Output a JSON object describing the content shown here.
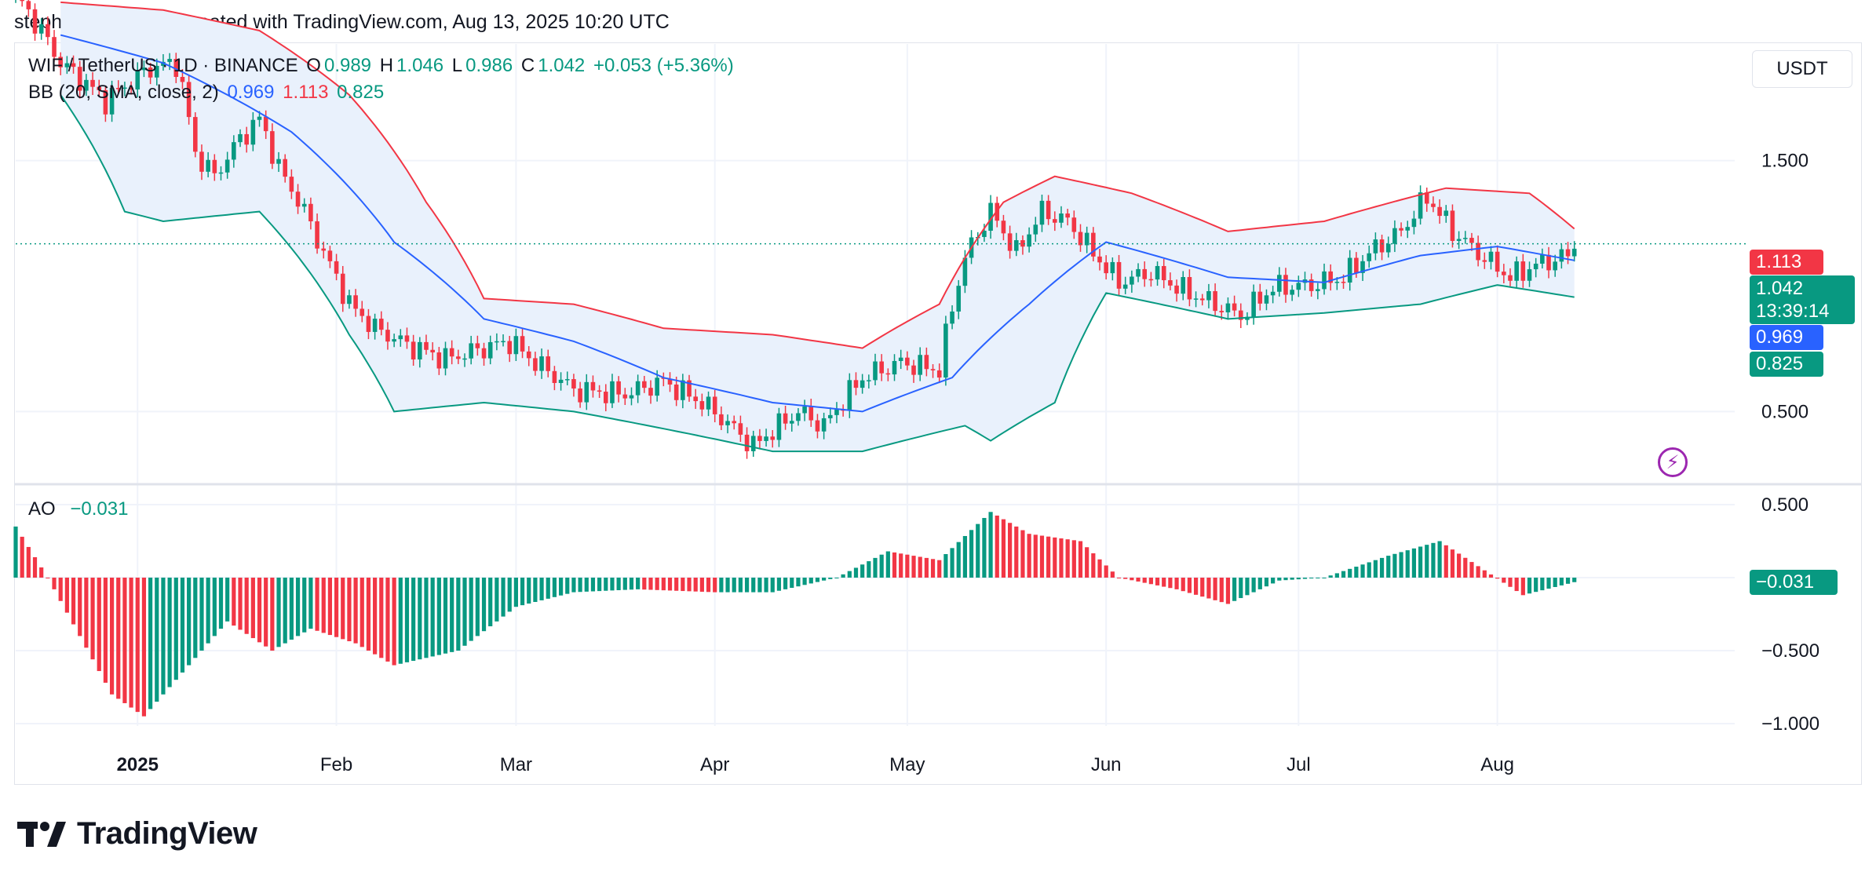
{
  "header": {
    "attribution": "stephanieolivia346 created with TradingView.com, Aug 13, 2025 10:20 UTC"
  },
  "legend": {
    "symbol": "WIF / TetherUS · 1D · BINANCE",
    "o_label": "O",
    "o_value": "0.989",
    "h_label": "H",
    "h_value": "1.046",
    "l_label": "L",
    "l_value": "0.986",
    "c_label": "C",
    "c_value": "1.042",
    "change": "+0.053 (+5.36%)",
    "bb_label": "BB (20, SMA, close, 2)",
    "bb_basis": "0.969",
    "bb_upper": "1.113",
    "bb_lower": "0.825",
    "ao_label": "AO",
    "ao_value": "−0.031"
  },
  "currency": "USDT",
  "price_tags": {
    "upper": "1.113",
    "last": "1.042",
    "countdown": "13:39:14",
    "basis": "0.969",
    "lower": "0.825",
    "ao": "−0.031"
  },
  "logo_text": "TradingView",
  "colors": {
    "up": "#089981",
    "down": "#f23645",
    "basis": "#2962ff",
    "upper": "#f23645",
    "lower": "#089981",
    "band_fill": "#e9f1fc",
    "grid": "#f0f3fa",
    "text": "#131722"
  },
  "chart_data": {
    "type": "candlestick",
    "symbol": "WIF / TetherUS",
    "interval": "1D",
    "exchange": "BINANCE",
    "last": {
      "open": 0.989,
      "high": 1.046,
      "low": 0.986,
      "close": 1.042,
      "change": 0.053,
      "change_pct": 5.36
    },
    "price_axis": {
      "scale": "log",
      "ticks": [
        "1.500",
        "0.500"
      ],
      "range": [
        0.37,
        2.5
      ]
    },
    "ao_axis": {
      "ticks": [
        "0.500",
        "−0.500",
        "−1.000"
      ],
      "range": [
        -1.0,
        0.5
      ]
    },
    "x_axis": {
      "labels": [
        "2025",
        "Feb",
        "Mar",
        "Apr",
        "May",
        "Jun",
        "Jul",
        "Aug"
      ],
      "dates": [
        "2025-01-01",
        "2025-02-01",
        "2025-03-01",
        "2025-04-01",
        "2025-05-01",
        "2025-06-01",
        "2025-07-01",
        "2025-08-01"
      ],
      "range": [
        "2024-12-13",
        "2025-09-07"
      ]
    },
    "grid": true,
    "close_series": [
      [
        "2024-12-13",
        3.1
      ],
      [
        "2024-12-20",
        2.3
      ],
      [
        "2024-12-27",
        1.95
      ],
      [
        "2025-01-03",
        2.25
      ],
      [
        "2025-01-07",
        2.3
      ],
      [
        "2025-01-10",
        1.55
      ],
      [
        "2025-01-13",
        1.4
      ],
      [
        "2025-01-17",
        1.65
      ],
      [
        "2025-01-20",
        1.8
      ],
      [
        "2025-01-23",
        1.45
      ],
      [
        "2025-01-27",
        1.2
      ],
      [
        "2025-01-30",
        1.0
      ],
      [
        "2025-02-03",
        0.8
      ],
      [
        "2025-02-07",
        0.72
      ],
      [
        "2025-02-12",
        0.67
      ],
      [
        "2025-02-18",
        0.63
      ],
      [
        "2025-02-24",
        0.66
      ],
      [
        "2025-02-28",
        0.68
      ],
      [
        "2025-03-04",
        0.62
      ],
      [
        "2025-03-10",
        0.55
      ],
      [
        "2025-03-18",
        0.54
      ],
      [
        "2025-03-24",
        0.57
      ],
      [
        "2025-03-30",
        0.52
      ],
      [
        "2025-04-07",
        0.43
      ],
      [
        "2025-04-14",
        0.5
      ],
      [
        "2025-04-18",
        0.47
      ],
      [
        "2025-04-24",
        0.58
      ],
      [
        "2025-04-30",
        0.62
      ],
      [
        "2025-05-06",
        0.6
      ],
      [
        "2025-05-10",
        0.98
      ],
      [
        "2025-05-14",
        1.2
      ],
      [
        "2025-05-18",
        1.0
      ],
      [
        "2025-05-22",
        1.2
      ],
      [
        "2025-05-26",
        1.15
      ],
      [
        "2025-05-30",
        1.0
      ],
      [
        "2025-06-03",
        0.88
      ],
      [
        "2025-06-08",
        0.92
      ],
      [
        "2025-06-13",
        0.85
      ],
      [
        "2025-06-18",
        0.8
      ],
      [
        "2025-06-22",
        0.76
      ],
      [
        "2025-06-27",
        0.86
      ],
      [
        "2025-07-03",
        0.87
      ],
      [
        "2025-07-08",
        0.9
      ],
      [
        "2025-07-12",
        1.0
      ],
      [
        "2025-07-17",
        1.1
      ],
      [
        "2025-07-21",
        1.28
      ],
      [
        "2025-07-25",
        1.1
      ],
      [
        "2025-07-29",
        1.0
      ],
      [
        "2025-08-03",
        0.9
      ],
      [
        "2025-08-07",
        0.95
      ],
      [
        "2025-08-12",
        0.99
      ],
      [
        "2025-08-13",
        1.042
      ]
    ],
    "bb_upper_series": [
      [
        "2024-12-20",
        3.0
      ],
      [
        "2025-01-05",
        2.9
      ],
      [
        "2025-01-20",
        2.65
      ],
      [
        "2025-02-03",
        2.0
      ],
      [
        "2025-02-15",
        1.25
      ],
      [
        "2025-02-24",
        0.82
      ],
      [
        "2025-03-10",
        0.8
      ],
      [
        "2025-03-24",
        0.72
      ],
      [
        "2025-04-10",
        0.7
      ],
      [
        "2025-04-24",
        0.66
      ],
      [
        "2025-05-06",
        0.8
      ],
      [
        "2025-05-16",
        1.25
      ],
      [
        "2025-05-24",
        1.4
      ],
      [
        "2025-06-05",
        1.3
      ],
      [
        "2025-06-20",
        1.1
      ],
      [
        "2025-07-05",
        1.15
      ],
      [
        "2025-07-24",
        1.33
      ],
      [
        "2025-08-06",
        1.3
      ],
      [
        "2025-08-13",
        1.113
      ]
    ],
    "bb_basis_series": [
      [
        "2024-12-20",
        2.6
      ],
      [
        "2025-01-05",
        2.3
      ],
      [
        "2025-01-25",
        1.7
      ],
      [
        "2025-02-10",
        1.05
      ],
      [
        "2025-02-24",
        0.75
      ],
      [
        "2025-03-10",
        0.68
      ],
      [
        "2025-03-24",
        0.58
      ],
      [
        "2025-04-10",
        0.52
      ],
      [
        "2025-04-24",
        0.5
      ],
      [
        "2025-05-08",
        0.58
      ],
      [
        "2025-05-20",
        0.8
      ],
      [
        "2025-06-01",
        1.05
      ],
      [
        "2025-06-20",
        0.9
      ],
      [
        "2025-07-05",
        0.88
      ],
      [
        "2025-07-20",
        0.99
      ],
      [
        "2025-08-01",
        1.03
      ],
      [
        "2025-08-13",
        0.969
      ]
    ],
    "bb_lower_series": [
      [
        "2024-12-20",
        2.0
      ],
      [
        "2024-12-30",
        1.2
      ],
      [
        "2025-01-05",
        1.15
      ],
      [
        "2025-01-20",
        1.2
      ],
      [
        "2025-02-03",
        0.7
      ],
      [
        "2025-02-10",
        0.5
      ],
      [
        "2025-02-24",
        0.52
      ],
      [
        "2025-03-10",
        0.5
      ],
      [
        "2025-04-10",
        0.42
      ],
      [
        "2025-04-24",
        0.42
      ],
      [
        "2025-05-10",
        0.47
      ],
      [
        "2025-05-14",
        0.44
      ],
      [
        "2025-05-24",
        0.52
      ],
      [
        "2025-06-01",
        0.84
      ],
      [
        "2025-06-20",
        0.75
      ],
      [
        "2025-07-05",
        0.77
      ],
      [
        "2025-07-20",
        0.8
      ],
      [
        "2025-08-01",
        0.87
      ],
      [
        "2025-08-13",
        0.825
      ]
    ],
    "ao_series": [
      [
        "2024-12-13",
        0.35
      ],
      [
        "2024-12-18",
        0.0
      ],
      [
        "2024-12-28",
        -0.8
      ],
      [
        "2025-01-02",
        -0.95
      ],
      [
        "2025-01-08",
        -0.65
      ],
      [
        "2025-01-15",
        -0.3
      ],
      [
        "2025-01-22",
        -0.5
      ],
      [
        "2025-01-28",
        -0.35
      ],
      [
        "2025-02-04",
        -0.45
      ],
      [
        "2025-02-10",
        -0.6
      ],
      [
        "2025-02-20",
        -0.5
      ],
      [
        "2025-03-01",
        -0.2
      ],
      [
        "2025-03-10",
        -0.1
      ],
      [
        "2025-03-20",
        -0.08
      ],
      [
        "2025-04-01",
        -0.1
      ],
      [
        "2025-04-10",
        -0.1
      ],
      [
        "2025-04-20",
        0.0
      ],
      [
        "2025-04-28",
        0.18
      ],
      [
        "2025-05-06",
        0.12
      ],
      [
        "2025-05-14",
        0.45
      ],
      [
        "2025-05-20",
        0.3
      ],
      [
        "2025-05-28",
        0.25
      ],
      [
        "2025-06-03",
        0.0
      ],
      [
        "2025-06-12",
        -0.08
      ],
      [
        "2025-06-20",
        -0.18
      ],
      [
        "2025-06-28",
        -0.02
      ],
      [
        "2025-07-05",
        0.0
      ],
      [
        "2025-07-15",
        0.15
      ],
      [
        "2025-07-23",
        0.25
      ],
      [
        "2025-07-30",
        0.05
      ],
      [
        "2025-08-05",
        -0.12
      ],
      [
        "2025-08-13",
        -0.031
      ]
    ]
  }
}
